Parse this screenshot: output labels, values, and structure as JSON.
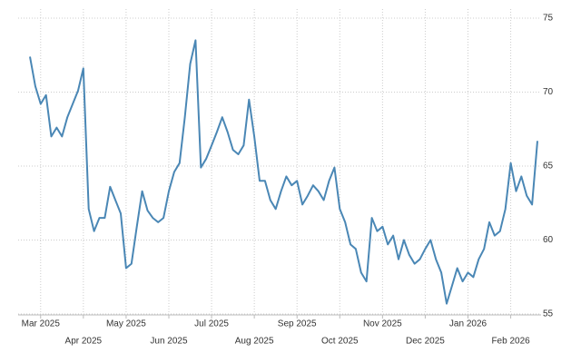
{
  "chart_data": {
    "type": "line",
    "categories": [
      null,
      null,
      "Mar 2025",
      null,
      null,
      null,
      null,
      null,
      null,
      null,
      "Apr 2025",
      null,
      null,
      null,
      null,
      null,
      null,
      null,
      "May 2025",
      null,
      null,
      null,
      null,
      null,
      null,
      null,
      "Jun 2025",
      null,
      null,
      null,
      null,
      null,
      null,
      null,
      "Jul 2025",
      null,
      null,
      null,
      null,
      null,
      null,
      null,
      "Aug 2025",
      null,
      null,
      null,
      null,
      null,
      null,
      null,
      "Sep 2025",
      null,
      null,
      null,
      null,
      null,
      null,
      null,
      "Oct 2025",
      null,
      null,
      null,
      null,
      null,
      null,
      null,
      "Nov 2025",
      null,
      null,
      null,
      null,
      null,
      null,
      null,
      "Dec 2025",
      null,
      null,
      null,
      null,
      null,
      null,
      null,
      "Jan 2026",
      null,
      null,
      null,
      null,
      null,
      null,
      null,
      "Feb 2026",
      null,
      null,
      null,
      null,
      null
    ],
    "values": [
      72.4,
      70.4,
      69.2,
      69.8,
      67.0,
      67.6,
      67.0,
      68.3,
      69.2,
      70.1,
      71.6,
      62.1,
      60.6,
      61.5,
      61.5,
      63.6,
      62.7,
      61.8,
      58.1,
      58.4,
      60.9,
      63.3,
      62.0,
      61.5,
      61.2,
      61.5,
      63.3,
      64.6,
      65.2,
      68.3,
      71.9,
      73.5,
      64.9,
      65.5,
      66.4,
      67.3,
      68.3,
      67.3,
      66.1,
      65.8,
      66.4,
      69.5,
      67.0,
      64.0,
      64.0,
      62.7,
      62.1,
      63.3,
      64.3,
      63.7,
      64.0,
      62.4,
      63.0,
      63.7,
      63.3,
      62.7,
      64.0,
      64.9,
      62.1,
      61.2,
      59.7,
      59.4,
      57.8,
      57.2,
      61.5,
      60.6,
      60.9,
      59.7,
      60.3,
      58.7,
      60.0,
      59.0,
      58.4,
      58.7,
      59.4,
      60.0,
      58.7,
      57.8,
      55.7,
      56.9,
      58.1,
      57.2,
      57.8,
      57.5,
      58.7,
      59.4,
      61.2,
      60.3,
      60.6,
      62.1,
      65.2,
      63.3,
      64.3,
      63.0,
      62.4,
      66.7
    ],
    "color": "#4a87b5",
    "ylim": [
      55,
      75
    ],
    "yticks": [
      55,
      60,
      65,
      70,
      75
    ],
    "grid": true
  }
}
